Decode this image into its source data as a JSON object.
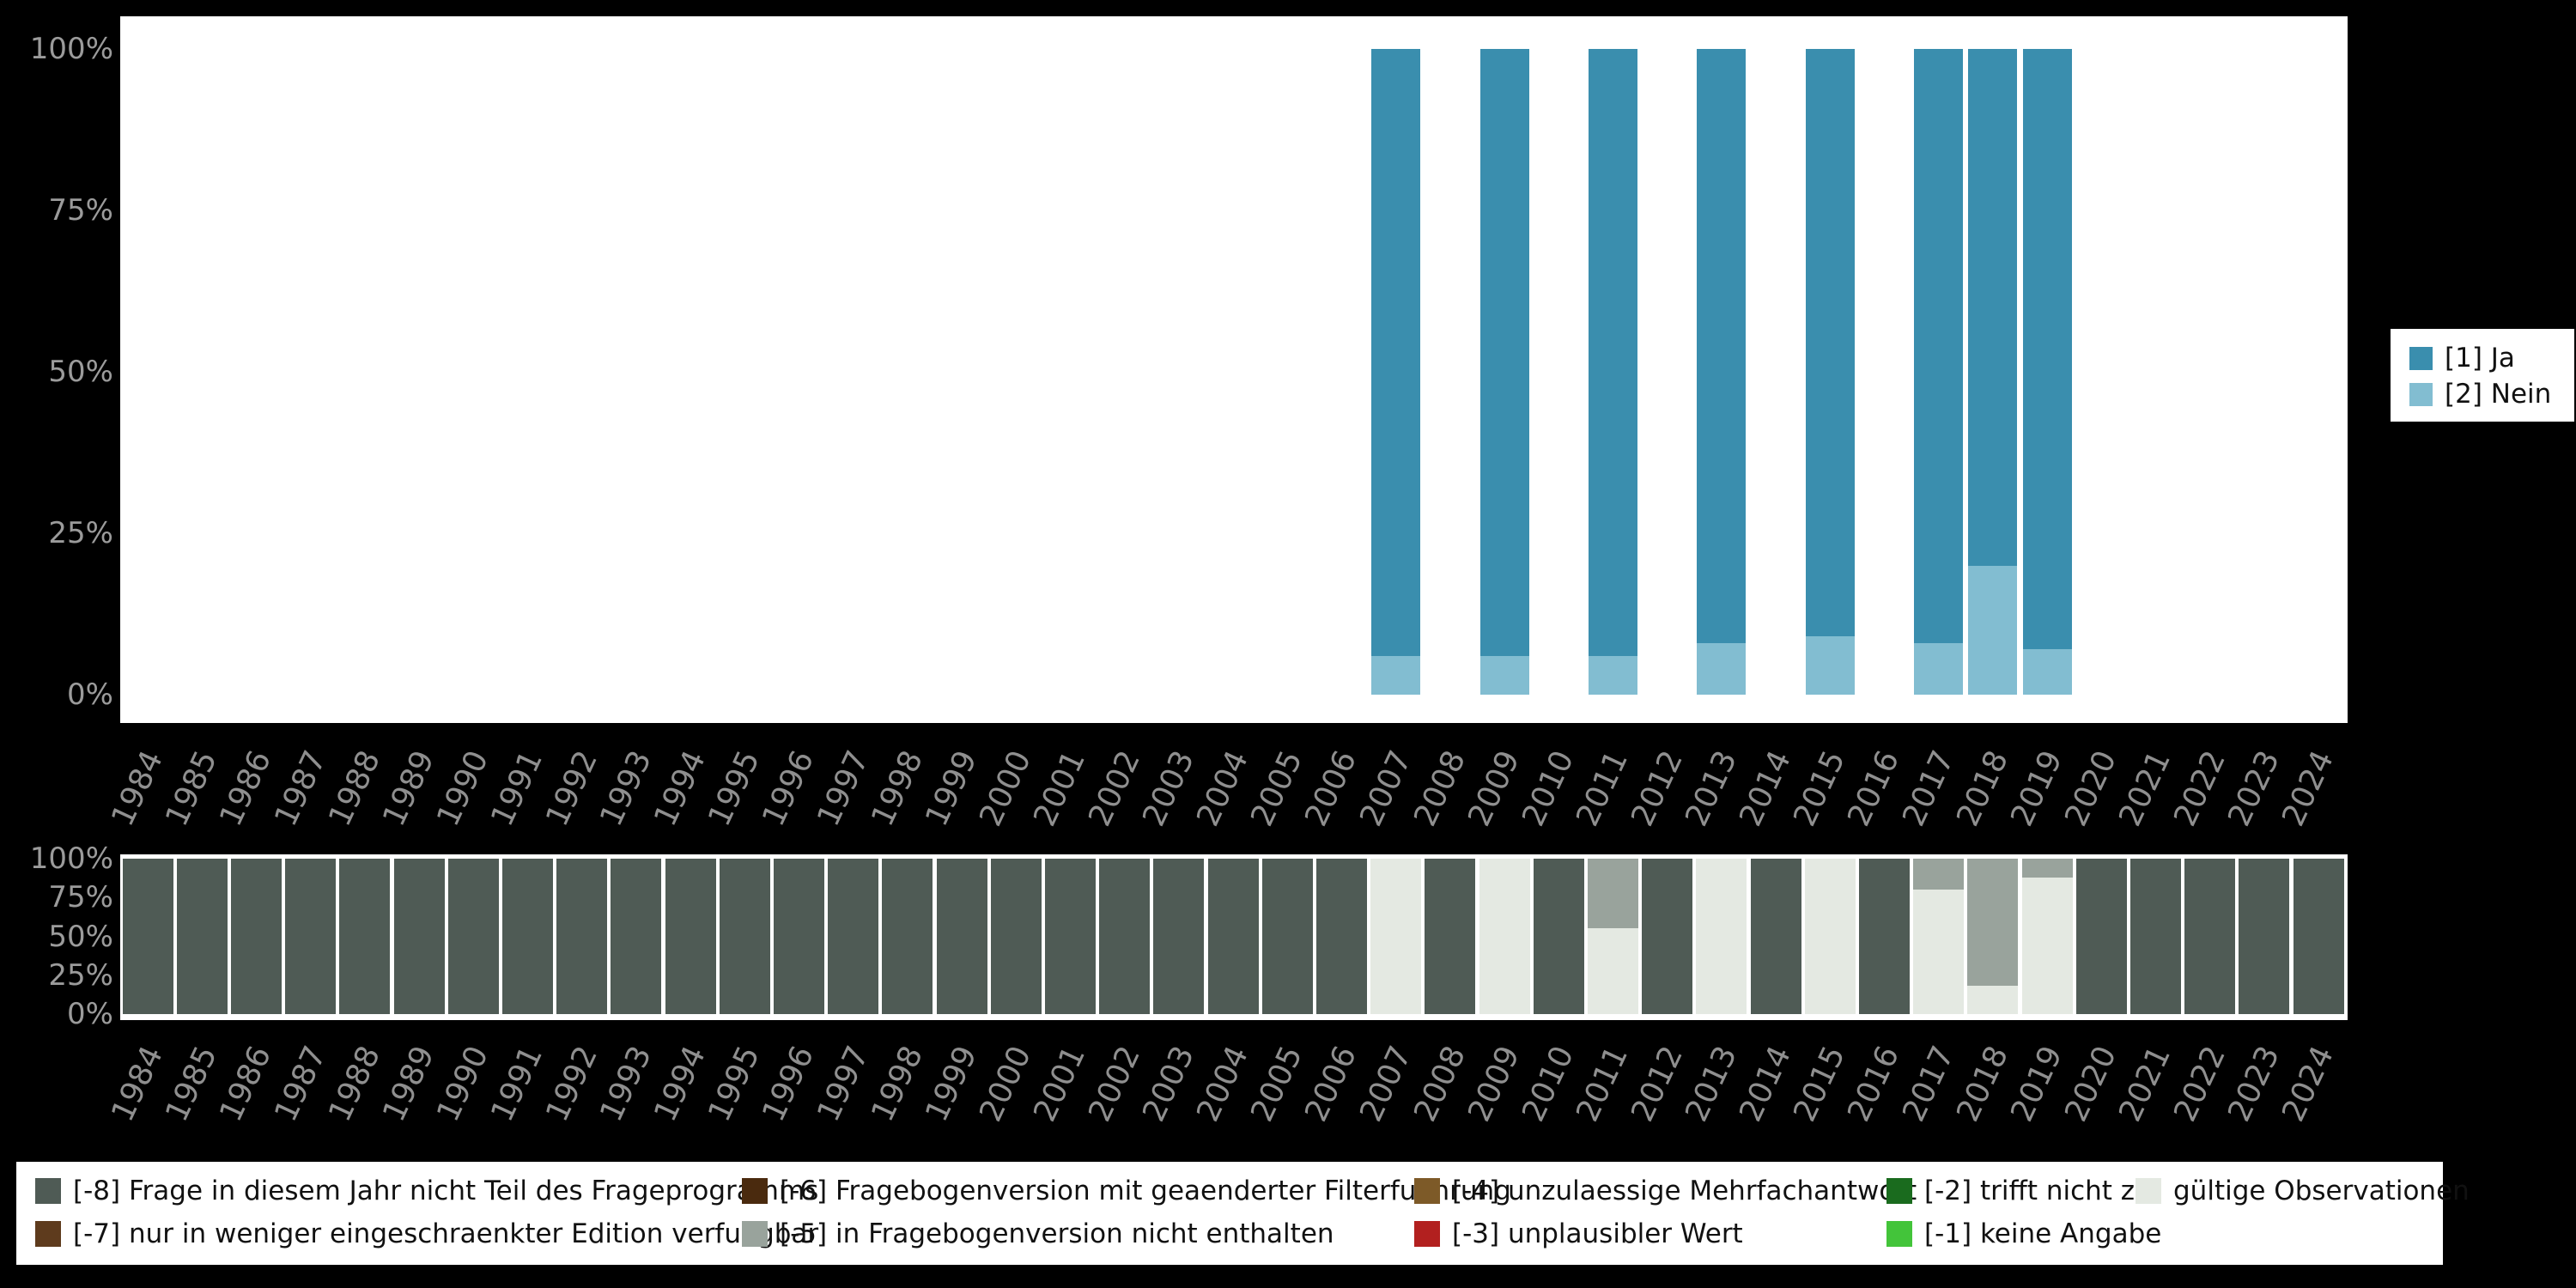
{
  "colors": {
    "background": "#000000",
    "panel": "#ffffff",
    "axis_text": "#9b9b9b",
    "year_text": "#8f8f8f",
    "legend_text": "#111111",
    "ja": "#3a8eae",
    "nein": "#82bdd1",
    "m8": "#4f5b55",
    "m7": "#5e3b1d",
    "m6": "#4a2a0e",
    "m5": "#99a39c",
    "m4": "#7d5a28",
    "m3": "#b2201f",
    "m2": "#1a6b1e",
    "m1": "#43c43a",
    "valid": "#e4e9e2"
  },
  "axes": {
    "y_ticks": [
      {
        "label": "0%",
        "value": 0
      },
      {
        "label": "25%",
        "value": 25
      },
      {
        "label": "50%",
        "value": 50
      },
      {
        "label": "75%",
        "value": 75
      },
      {
        "label": "100%",
        "value": 100
      }
    ]
  },
  "top_legend": {
    "items": [
      {
        "label": "[1] Ja",
        "color_key": "ja"
      },
      {
        "label": "[2] Nein",
        "color_key": "nein"
      }
    ]
  },
  "missing_legend": {
    "columns": [
      {
        "items": [
          {
            "label": "[-8] Frage in diesem Jahr nicht Teil des Frageprogramms",
            "color_key": "m8"
          },
          {
            "label": "[-7] nur in weniger eingeschraenkter Edition verfuegbar",
            "color_key": "m7"
          }
        ]
      },
      {
        "items": [
          {
            "label": "[-6] Fragebogenversion mit geaenderter Filterfuehrung",
            "color_key": "m6"
          },
          {
            "label": "[-5] in Fragebogenversion nicht enthalten",
            "color_key": "m5"
          }
        ]
      },
      {
        "items": [
          {
            "label": "[-4] unzulaessige Mehrfachantwort",
            "color_key": "m4"
          },
          {
            "label": "[-3] unplausibler Wert",
            "color_key": "m3"
          }
        ]
      },
      {
        "items": [
          {
            "label": "[-2] trifft nicht zu",
            "color_key": "m2"
          },
          {
            "label": "[-1] keine Angabe",
            "color_key": "m1"
          }
        ]
      },
      {
        "items": [
          {
            "label": "gültige Observationen",
            "color_key": "valid"
          }
        ]
      }
    ]
  },
  "chart_data": [
    {
      "type": "bar",
      "stacked": true,
      "title": "",
      "xlabel": "",
      "ylabel": "",
      "ylim": [
        0,
        100
      ],
      "yticks": [
        "0%",
        "25%",
        "50%",
        "75%",
        "100%"
      ],
      "legend_position": "right",
      "categories": [
        "1984",
        "1985",
        "1986",
        "1987",
        "1988",
        "1989",
        "1990",
        "1991",
        "1992",
        "1993",
        "1994",
        "1995",
        "1996",
        "1997",
        "1998",
        "1999",
        "2000",
        "2001",
        "2002",
        "2003",
        "2004",
        "2005",
        "2006",
        "2007",
        "2008",
        "2009",
        "2010",
        "2011",
        "2012",
        "2013",
        "2014",
        "2015",
        "2016",
        "2017",
        "2018",
        "2019",
        "2020",
        "2021",
        "2022",
        "2023",
        "2024"
      ],
      "series": [
        {
          "name": "[2] Nein",
          "color_key": "nein",
          "values": [
            0,
            0,
            0,
            0,
            0,
            0,
            0,
            0,
            0,
            0,
            0,
            0,
            0,
            0,
            0,
            0,
            0,
            0,
            0,
            0,
            0,
            0,
            0,
            6,
            0,
            6,
            0,
            6,
            0,
            8,
            0,
            9,
            0,
            8,
            20,
            7,
            0,
            0,
            0,
            0,
            0
          ]
        },
        {
          "name": "[1] Ja",
          "color_key": "ja",
          "values": [
            0,
            0,
            0,
            0,
            0,
            0,
            0,
            0,
            0,
            0,
            0,
            0,
            0,
            0,
            0,
            0,
            0,
            0,
            0,
            0,
            0,
            0,
            0,
            94,
            0,
            94,
            0,
            94,
            0,
            92,
            0,
            91,
            0,
            92,
            80,
            93,
            0,
            0,
            0,
            0,
            0
          ]
        }
      ]
    },
    {
      "type": "bar",
      "stacked": true,
      "title": "",
      "xlabel": "",
      "ylabel": "",
      "ylim": [
        0,
        100
      ],
      "yticks": [
        "0%",
        "25%",
        "50%",
        "75%",
        "100%"
      ],
      "legend_position": "bottom",
      "categories": [
        "1984",
        "1985",
        "1986",
        "1987",
        "1988",
        "1989",
        "1990",
        "1991",
        "1992",
        "1993",
        "1994",
        "1995",
        "1996",
        "1997",
        "1998",
        "1999",
        "2000",
        "2001",
        "2002",
        "2003",
        "2004",
        "2005",
        "2006",
        "2007",
        "2008",
        "2009",
        "2010",
        "2011",
        "2012",
        "2013",
        "2014",
        "2015",
        "2016",
        "2017",
        "2018",
        "2019",
        "2020",
        "2021",
        "2022",
        "2023",
        "2024"
      ],
      "series": [
        {
          "name": "gültige Observationen",
          "color_key": "valid",
          "values": [
            0,
            0,
            0,
            0,
            0,
            0,
            0,
            0,
            0,
            0,
            0,
            0,
            0,
            0,
            0,
            0,
            0,
            0,
            0,
            0,
            0,
            0,
            0,
            100,
            0,
            100,
            0,
            55,
            0,
            100,
            0,
            100,
            0,
            80,
            18,
            88,
            0,
            0,
            0,
            0,
            0
          ]
        },
        {
          "name": "[-5] in Fragebogenversion nicht enthalten",
          "color_key": "m5",
          "values": [
            0,
            0,
            0,
            0,
            0,
            0,
            0,
            0,
            0,
            0,
            0,
            0,
            0,
            0,
            0,
            0,
            0,
            0,
            0,
            0,
            0,
            0,
            0,
            0,
            0,
            0,
            0,
            45,
            0,
            0,
            0,
            0,
            0,
            20,
            82,
            12,
            0,
            0,
            0,
            0,
            0
          ]
        },
        {
          "name": "[-8] Frage in diesem Jahr nicht Teil des Frageprogramms",
          "color_key": "m8",
          "values": [
            100,
            100,
            100,
            100,
            100,
            100,
            100,
            100,
            100,
            100,
            100,
            100,
            100,
            100,
            100,
            100,
            100,
            100,
            100,
            100,
            100,
            100,
            100,
            0,
            100,
            0,
            100,
            0,
            100,
            0,
            100,
            0,
            100,
            0,
            0,
            0,
            100,
            100,
            100,
            100,
            100
          ]
        }
      ]
    }
  ]
}
